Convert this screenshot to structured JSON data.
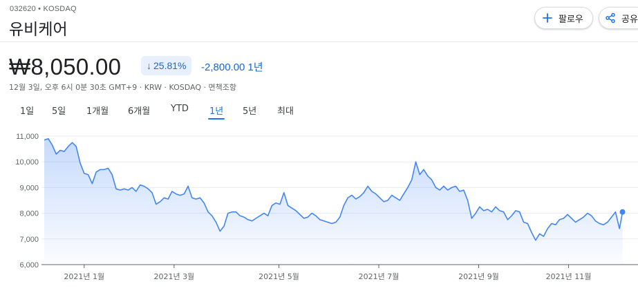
{
  "header": {
    "ticker": "032620 • KOSDAQ",
    "name": "유비케어",
    "follow_label": "팔로우",
    "share_label": "공유"
  },
  "quote": {
    "price": "₩8,050.00",
    "change_percent": "25.81%",
    "change_value": "-2,800.00",
    "change_period": "1년",
    "meta": "12월 3일, 오후 6시 0분 30초 GMT+9 · KRW · KOSDAQ · 면책조항"
  },
  "tabs": [
    {
      "label": "1일"
    },
    {
      "label": "5일"
    },
    {
      "label": "1개월"
    },
    {
      "label": "6개월"
    },
    {
      "label": "YTD"
    },
    {
      "label": "1년",
      "active": true
    },
    {
      "label": "5년"
    },
    {
      "label": "최대"
    }
  ],
  "colors": {
    "accent": "#1a73e8",
    "negative_chip_bg": "#e8f0fe",
    "line": "#4285f4"
  },
  "chart_data": {
    "type": "area",
    "y_ticks": [
      "11,000",
      "10,000",
      "9,000",
      "8,000",
      "7,000",
      "6,000"
    ],
    "y_values": [
      11000,
      10000,
      9000,
      8000,
      7000,
      6000
    ],
    "ylim": [
      6000,
      11000
    ],
    "x_ticks": [
      {
        "label": "2021년 1월",
        "week": 4
      },
      {
        "label": "2021년 3월",
        "week": 13
      },
      {
        "label": "2021년 5월",
        "week": 23.5
      },
      {
        "label": "2021년 7월",
        "week": 33.5
      },
      {
        "label": "2021년 9월",
        "week": 43.5
      },
      {
        "label": "2021년 11월",
        "week": 52.5
      }
    ],
    "x_range_weeks": [
      0,
      58
    ],
    "series": [
      {
        "points": [
          [
            0,
            10850
          ],
          [
            0.4,
            10900
          ],
          [
            0.8,
            10650
          ],
          [
            1.2,
            10300
          ],
          [
            1.6,
            10450
          ],
          [
            2.0,
            10400
          ],
          [
            2.4,
            10600
          ],
          [
            2.8,
            10750
          ],
          [
            3.2,
            10600
          ],
          [
            3.6,
            9950
          ],
          [
            4.0,
            9550
          ],
          [
            4.4,
            9500
          ],
          [
            4.8,
            9150
          ],
          [
            5.2,
            9600
          ],
          [
            5.6,
            9700
          ],
          [
            6.0,
            9700
          ],
          [
            6.4,
            9750
          ],
          [
            6.8,
            9500
          ],
          [
            7.2,
            8950
          ],
          [
            7.6,
            8900
          ],
          [
            8.0,
            8950
          ],
          [
            8.4,
            8900
          ],
          [
            8.8,
            9000
          ],
          [
            9.2,
            8850
          ],
          [
            9.6,
            9100
          ],
          [
            10.0,
            9050
          ],
          [
            10.4,
            8950
          ],
          [
            10.8,
            8800
          ],
          [
            11.2,
            8350
          ],
          [
            11.6,
            8450
          ],
          [
            12.0,
            8600
          ],
          [
            12.4,
            8550
          ],
          [
            12.8,
            8850
          ],
          [
            13.2,
            8750
          ],
          [
            13.6,
            8700
          ],
          [
            14.0,
            8750
          ],
          [
            14.4,
            9050
          ],
          [
            14.8,
            8600
          ],
          [
            15.2,
            8550
          ],
          [
            15.6,
            8600
          ],
          [
            16.0,
            8400
          ],
          [
            16.4,
            8050
          ],
          [
            16.8,
            7900
          ],
          [
            17.2,
            7650
          ],
          [
            17.6,
            7300
          ],
          [
            18.0,
            7500
          ],
          [
            18.4,
            8000
          ],
          [
            18.8,
            8050
          ],
          [
            19.2,
            8050
          ],
          [
            19.6,
            7900
          ],
          [
            20.0,
            7850
          ],
          [
            20.4,
            7750
          ],
          [
            20.8,
            7700
          ],
          [
            21.2,
            7800
          ],
          [
            21.6,
            7900
          ],
          [
            22.0,
            8000
          ],
          [
            22.4,
            7900
          ],
          [
            22.8,
            8300
          ],
          [
            23.2,
            8400
          ],
          [
            23.6,
            8350
          ],
          [
            24.0,
            8800
          ],
          [
            24.4,
            8300
          ],
          [
            24.8,
            8200
          ],
          [
            25.2,
            8100
          ],
          [
            25.6,
            7950
          ],
          [
            26.0,
            7800
          ],
          [
            26.4,
            7850
          ],
          [
            26.8,
            8000
          ],
          [
            27.2,
            7900
          ],
          [
            27.6,
            7750
          ],
          [
            28.0,
            7700
          ],
          [
            28.4,
            7650
          ],
          [
            28.8,
            7600
          ],
          [
            29.2,
            7650
          ],
          [
            29.6,
            7850
          ],
          [
            30.0,
            8300
          ],
          [
            30.4,
            8600
          ],
          [
            30.8,
            8700
          ],
          [
            31.2,
            8550
          ],
          [
            31.6,
            8650
          ],
          [
            32.0,
            8800
          ],
          [
            32.4,
            9050
          ],
          [
            32.8,
            8850
          ],
          [
            33.2,
            8750
          ],
          [
            33.6,
            8600
          ],
          [
            34.0,
            8450
          ],
          [
            34.4,
            8500
          ],
          [
            34.8,
            8700
          ],
          [
            35.2,
            8600
          ],
          [
            35.6,
            8500
          ],
          [
            36.0,
            8750
          ],
          [
            36.4,
            9000
          ],
          [
            36.8,
            9300
          ],
          [
            37.2,
            10000
          ],
          [
            37.6,
            9500
          ],
          [
            38.0,
            9700
          ],
          [
            38.4,
            9450
          ],
          [
            38.8,
            9300
          ],
          [
            39.2,
            9000
          ],
          [
            39.6,
            8900
          ],
          [
            40.0,
            9050
          ],
          [
            40.4,
            8900
          ],
          [
            40.8,
            9000
          ],
          [
            41.2,
            9050
          ],
          [
            41.6,
            8850
          ],
          [
            42.0,
            8900
          ],
          [
            42.4,
            8500
          ],
          [
            42.8,
            7800
          ],
          [
            43.2,
            8000
          ],
          [
            43.6,
            8250
          ],
          [
            44.0,
            8100
          ],
          [
            44.4,
            8150
          ],
          [
            44.8,
            8050
          ],
          [
            45.2,
            8250
          ],
          [
            45.6,
            8100
          ],
          [
            46.0,
            8050
          ],
          [
            46.4,
            7750
          ],
          [
            46.8,
            7900
          ],
          [
            47.2,
            8100
          ],
          [
            47.6,
            8050
          ],
          [
            48.0,
            7650
          ],
          [
            48.4,
            7600
          ],
          [
            48.8,
            7250
          ],
          [
            49.2,
            6950
          ],
          [
            49.6,
            7200
          ],
          [
            50.0,
            7100
          ],
          [
            50.4,
            7400
          ],
          [
            50.8,
            7600
          ],
          [
            51.2,
            7550
          ],
          [
            51.6,
            7750
          ],
          [
            52.0,
            7800
          ],
          [
            52.4,
            7950
          ],
          [
            52.8,
            7800
          ],
          [
            53.2,
            7650
          ],
          [
            53.6,
            7750
          ],
          [
            54.0,
            7850
          ],
          [
            54.4,
            8000
          ],
          [
            54.8,
            7900
          ],
          [
            55.2,
            7700
          ],
          [
            55.6,
            7600
          ],
          [
            56.0,
            7550
          ],
          [
            56.4,
            7650
          ],
          [
            56.8,
            7850
          ],
          [
            57.2,
            8050
          ],
          [
            57.6,
            7400
          ],
          [
            57.9,
            8050
          ]
        ]
      }
    ],
    "last_point": [
      57.9,
      8050
    ],
    "grid": true,
    "legend": "none"
  }
}
